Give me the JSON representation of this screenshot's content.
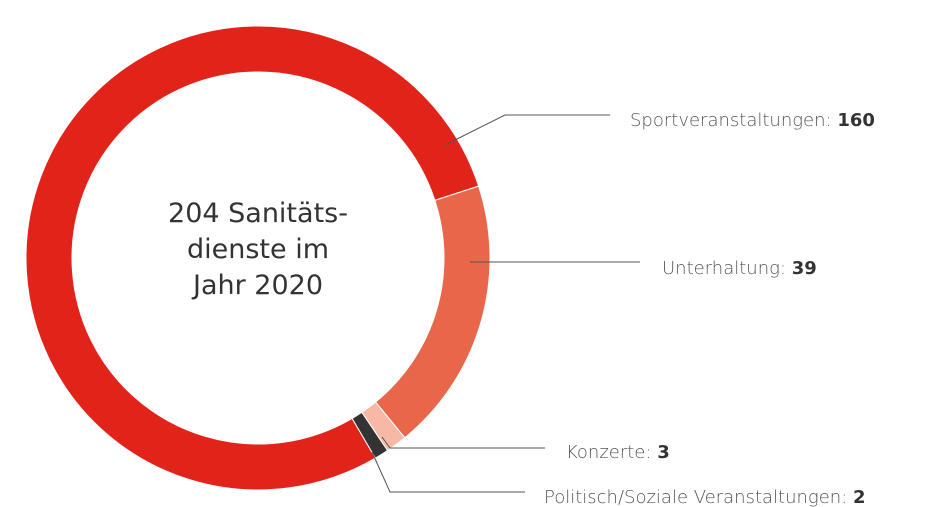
{
  "chart_data": {
    "type": "donut",
    "title_lines": [
      "204 Sanitäts-",
      "dienste im",
      "Jahr 2020"
    ],
    "categories": [
      "Sportveranstaltungen:",
      "Unterhaltung:",
      "Konzerte:",
      "Politisch/Soziale Veranstaltungen:"
    ],
    "values": [
      160,
      39,
      3,
      2
    ],
    "colors": [
      "#e2231a",
      "#e8664a",
      "#f7b9a6",
      "#333333"
    ]
  }
}
